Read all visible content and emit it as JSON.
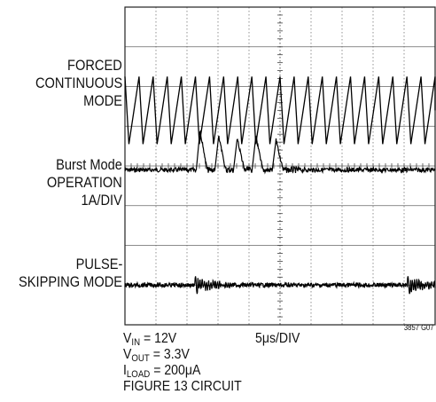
{
  "chart_data": {
    "type": "line",
    "title": "",
    "grid": true,
    "x_divisions": 10,
    "y_divisions": 8,
    "traces": [
      {
        "name": "FORCED CONTINUOUS MODE",
        "label_lines": [
          "FORCED",
          "CONTINUOUS",
          "MODE"
        ],
        "shape": "sawtooth-triangle",
        "cycles": 22,
        "peak_div": 3.45,
        "valley_div": 1.75
      },
      {
        "name": "Burst Mode OPERATION",
        "label_lines": [
          "Burst Mode",
          "OPERATION",
          "1A/DIV"
        ],
        "shape": "burst-pulses",
        "baseline_div": 4.1,
        "pulse_times_div": [
          2.3,
          2.9,
          3.5,
          4.1,
          4.75
        ],
        "pulse_heights_div": [
          1.0,
          0.85,
          0.8,
          0.85,
          0.75
        ]
      },
      {
        "name": "PULSE-SKIPPING MODE",
        "label_lines": [
          "PULSE-",
          "SKIPPING MODE"
        ],
        "shape": "skip-ringing",
        "baseline_div": 7.0,
        "event_times_div": [
          2.3,
          9.15
        ]
      }
    ],
    "annotations": {
      "vin": {
        "sym": "V",
        "sub": "IN",
        "value": " = 12V"
      },
      "vout": {
        "sym": "V",
        "sub": "OUT",
        "value": " = 3.3V"
      },
      "iload": {
        "sym": "I",
        "sub": "LOAD",
        "value": " = 200μA"
      },
      "circuit": "FIGURE 13 CIRCUIT",
      "timebase": "5μs/DIV",
      "figure_id": "3857 G07"
    }
  }
}
